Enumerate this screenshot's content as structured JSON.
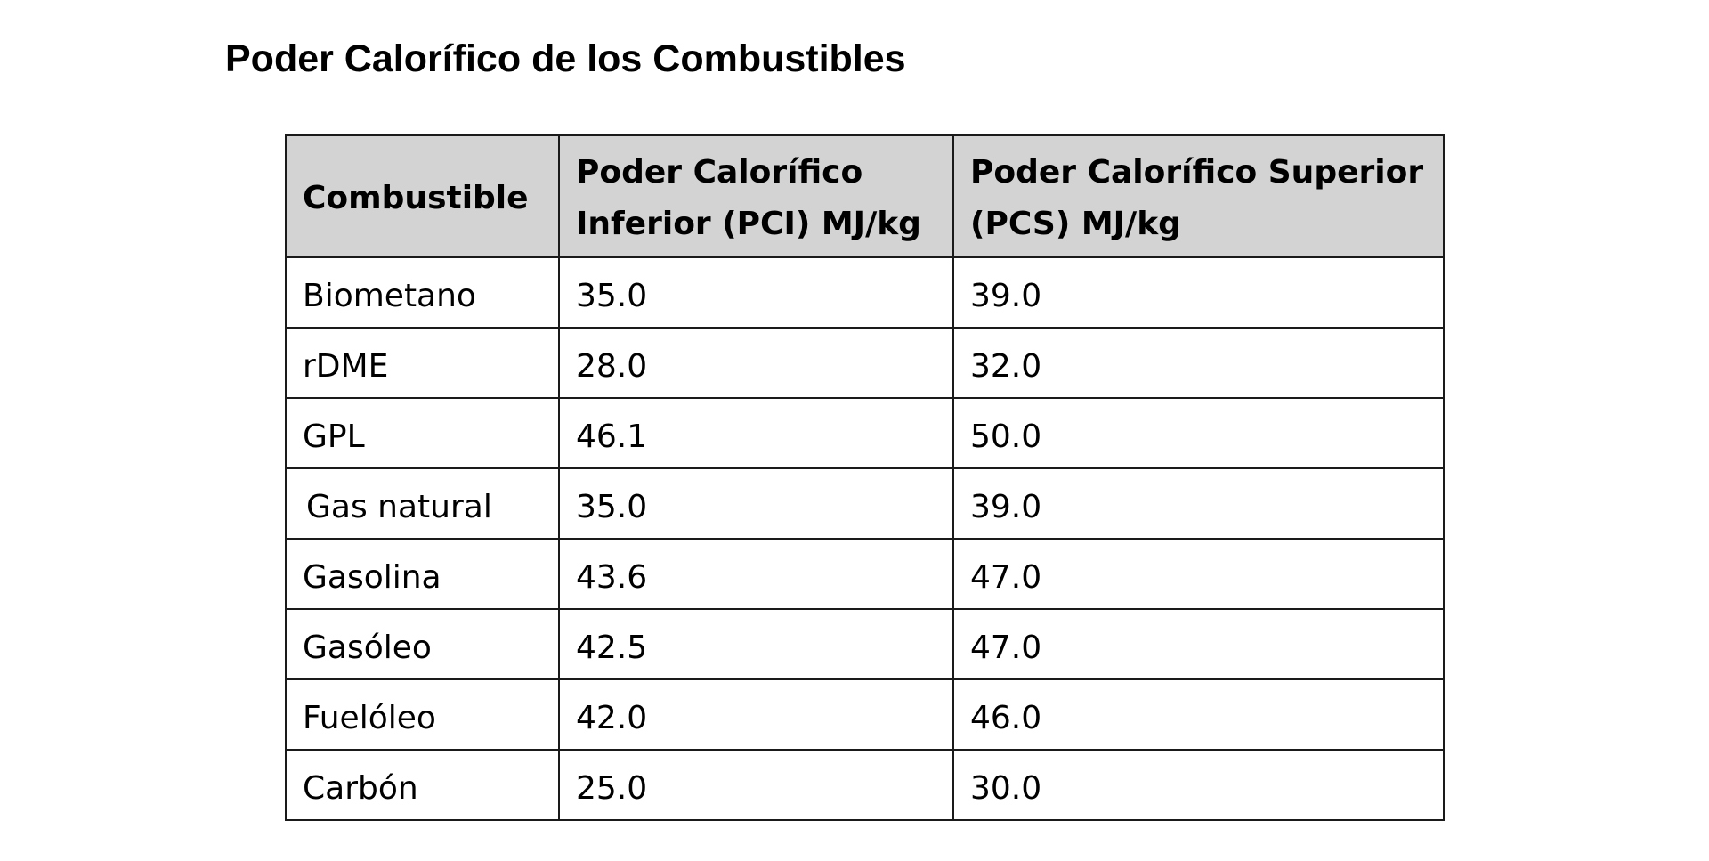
{
  "document": {
    "title": "Poder Calorífico de los Combustibles"
  },
  "table": {
    "headers": [
      "Combustible",
      "Poder Calorífico Inferior (PCI) MJ/kg",
      "Poder Calorífico Superior (PCS) MJ/kg"
    ],
    "rows": [
      [
        "Biometano",
        "35.0",
        "39.0"
      ],
      [
        "rDME",
        "28.0",
        "32.0"
      ],
      [
        "GPL",
        "46.1",
        "50.0"
      ],
      [
        "Gas natural",
        "35.0",
        "39.0"
      ],
      [
        "Gasolina",
        "43.6",
        "47.0"
      ],
      [
        "Gasóleo",
        "42.5",
        "47.0"
      ],
      [
        "Fuelóleo",
        "42.0",
        "46.0"
      ],
      [
        "Carbón",
        "25.0",
        "30.0"
      ]
    ]
  }
}
